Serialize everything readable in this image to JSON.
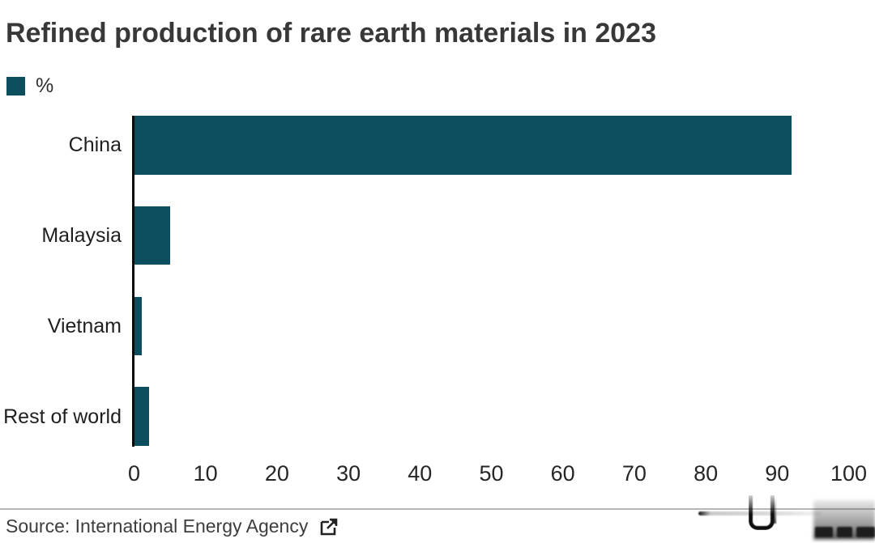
{
  "title": "Refined production of rare earth materials in 2023",
  "legend": {
    "label": "%"
  },
  "chart_data": {
    "type": "bar",
    "orientation": "horizontal",
    "title": "Refined production of rare earth materials in 2023",
    "categories": [
      "China",
      "Malaysia",
      "Vietnam",
      "Rest of world"
    ],
    "values": [
      92,
      5,
      1,
      2
    ],
    "unit": "%",
    "xlabel": "",
    "ylabel": "",
    "xlim": [
      0,
      100
    ],
    "xticks": [
      0,
      10,
      20,
      30,
      40,
      50,
      60,
      70,
      80,
      90,
      100
    ],
    "grid": false,
    "legend_label": "%",
    "legend_position": "top-left",
    "bar_color": "#0d4e5e"
  },
  "source": {
    "label": "Source: International Energy Agency",
    "icon": "external-link-icon"
  },
  "colors": {
    "bar": "#0d4e5e",
    "title_text": "#383838",
    "category_text": "#1f1f1f",
    "tick_text": "#262626",
    "source_text": "#3d3d3d",
    "axis_line": "#0b0b0b",
    "divider": "#b6b6b6"
  }
}
